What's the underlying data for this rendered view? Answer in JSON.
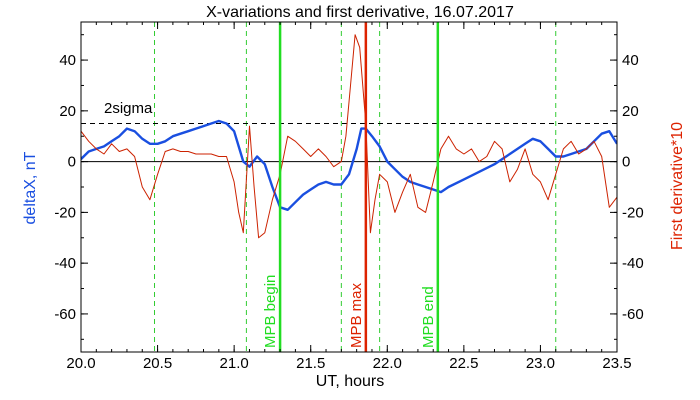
{
  "chart_data": {
    "type": "line",
    "title": "X-variations and first derivative, 16.07.2017",
    "xlabel": "UT, hours",
    "ylabel_left": "deltaX, nT",
    "ylabel_right": "First derivative*10",
    "xlim": [
      20.0,
      23.5
    ],
    "ylim": [
      -75,
      55
    ],
    "x_ticks": [
      20.0,
      20.5,
      21.0,
      21.5,
      22.0,
      22.5,
      23.0,
      23.5
    ],
    "x_tick_labels": [
      "20.0",
      "20.5",
      "21.0",
      "21.5",
      "22.0",
      "22.5",
      "23.0",
      "23.5"
    ],
    "y_ticks": [
      40,
      20,
      0,
      -20,
      -40,
      -60
    ],
    "y_tick_labels": [
      "40",
      "20",
      "0",
      "-20",
      "-40",
      "-60"
    ],
    "colors": {
      "deltaX": "#1a4fe0",
      "derivative": "#cc2200",
      "mpb_green": "#22dd22",
      "mpb_red": "#dd2200",
      "dashed_green": "#33cc33"
    },
    "threshold": {
      "label": "2sigma",
      "value": 15
    },
    "zero_line": 0,
    "dashed_vlines": [
      20.48,
      21.08,
      21.7,
      21.95,
      23.1
    ],
    "markers": [
      {
        "label": "MPB begin",
        "x": 21.3,
        "color": "#22dd22"
      },
      {
        "label": "MPB max",
        "x": 21.86,
        "color": "#dd2200"
      },
      {
        "label": "MPB end",
        "x": 22.33,
        "color": "#22dd22"
      }
    ],
    "series": [
      {
        "key": "deltaX",
        "x": [
          20.0,
          20.05,
          20.1,
          20.15,
          20.2,
          20.25,
          20.3,
          20.35,
          20.4,
          20.45,
          20.5,
          20.55,
          20.6,
          20.65,
          20.7,
          20.75,
          20.8,
          20.85,
          20.9,
          20.95,
          21.0,
          21.03,
          21.06,
          21.1,
          21.15,
          21.2,
          21.25,
          21.3,
          21.35,
          21.4,
          21.45,
          21.5,
          21.55,
          21.6,
          21.65,
          21.7,
          21.75,
          21.8,
          21.83,
          21.86,
          21.9,
          21.95,
          22.0,
          22.05,
          22.1,
          22.15,
          22.2,
          22.25,
          22.3,
          22.35,
          22.4,
          22.5,
          22.6,
          22.7,
          22.8,
          22.9,
          22.95,
          23.0,
          23.05,
          23.1,
          23.15,
          23.2,
          23.3,
          23.35,
          23.4,
          23.45,
          23.5
        ],
        "y": [
          1,
          4,
          5,
          6,
          8,
          10,
          13,
          12,
          9,
          7,
          7,
          8,
          10,
          11,
          12,
          13,
          14,
          15,
          16,
          15,
          12,
          6,
          0,
          -2,
          2,
          -1,
          -10,
          -18,
          -19,
          -16,
          -13,
          -11,
          -9,
          -8,
          -9,
          -9,
          -5,
          5,
          13,
          13,
          10,
          6,
          0,
          -3,
          -6,
          -8,
          -9,
          -10,
          -11,
          -12,
          -10,
          -7,
          -4,
          -1,
          3,
          7,
          9,
          8,
          5,
          2,
          2,
          3,
          5,
          8,
          11,
          12,
          7
        ]
      },
      {
        "key": "derivative",
        "x": [
          20.0,
          20.05,
          20.1,
          20.15,
          20.2,
          20.25,
          20.3,
          20.35,
          20.4,
          20.45,
          20.5,
          20.55,
          20.6,
          20.65,
          20.7,
          20.75,
          20.8,
          20.85,
          20.9,
          20.95,
          21.0,
          21.03,
          21.06,
          21.1,
          21.13,
          21.16,
          21.2,
          21.25,
          21.3,
          21.35,
          21.4,
          21.45,
          21.5,
          21.55,
          21.6,
          21.65,
          21.7,
          21.73,
          21.76,
          21.79,
          21.82,
          21.86,
          21.89,
          21.92,
          21.95,
          22.0,
          22.05,
          22.1,
          22.15,
          22.2,
          22.25,
          22.3,
          22.35,
          22.4,
          22.45,
          22.5,
          22.55,
          22.6,
          22.65,
          22.7,
          22.75,
          22.8,
          22.85,
          22.9,
          22.95,
          23.0,
          23.05,
          23.1,
          23.15,
          23.2,
          23.25,
          23.3,
          23.35,
          23.4,
          23.45,
          23.5
        ],
        "y": [
          12,
          8,
          5,
          3,
          7,
          4,
          5,
          2,
          -10,
          -15,
          -5,
          4,
          5,
          4,
          4,
          3,
          3,
          3,
          2,
          2,
          -8,
          -20,
          -28,
          14,
          -10,
          -30,
          -28,
          -15,
          -5,
          10,
          8,
          5,
          2,
          5,
          2,
          -2,
          0,
          10,
          30,
          50,
          45,
          15,
          -28,
          -15,
          -5,
          -8,
          -20,
          -12,
          -5,
          -18,
          -20,
          -8,
          5,
          10,
          5,
          3,
          5,
          0,
          2,
          8,
          5,
          -8,
          -3,
          5,
          -5,
          -8,
          -15,
          -5,
          5,
          8,
          3,
          5,
          8,
          2,
          -18,
          -14
        ]
      }
    ]
  }
}
